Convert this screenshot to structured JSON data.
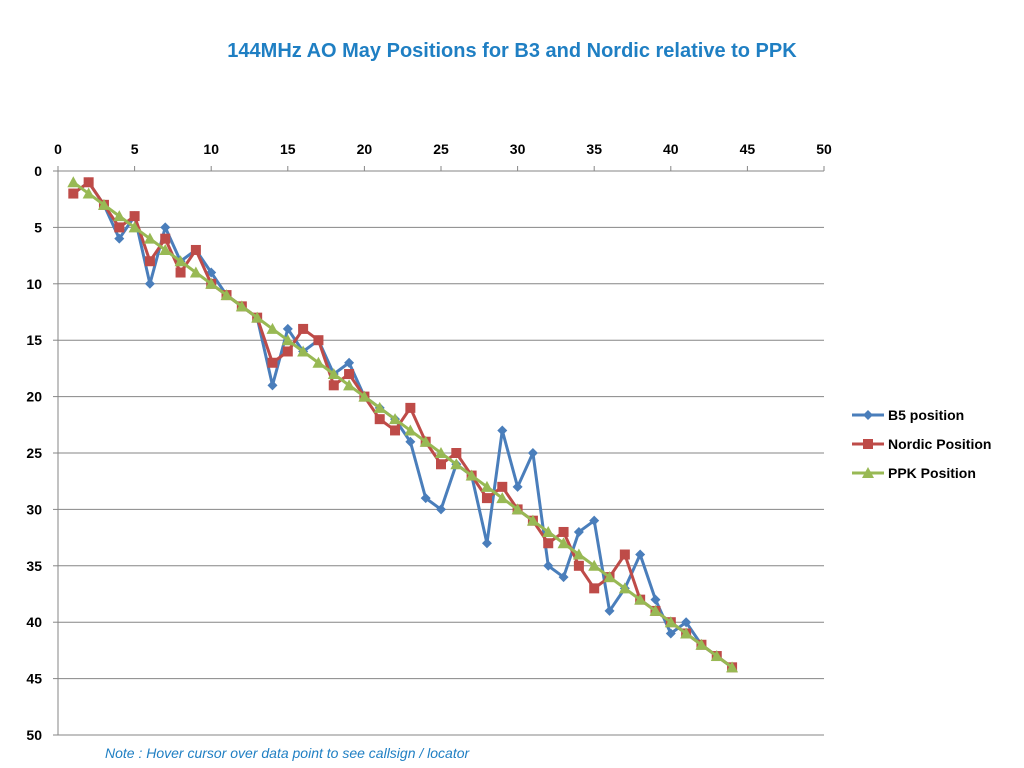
{
  "title": "144MHz AO May Positions for B3 and Nordic relative to PPK",
  "note": "Note : Hover cursor over data point to see callsign / locator",
  "colors": {
    "b5": "#4a7ebb",
    "nordic": "#be4b48",
    "ppk": "#98b954",
    "grid": "#868686"
  },
  "chart_data": {
    "type": "line",
    "title": "144MHz AO May Positions for B3 and Nordic relative to PPK",
    "xlabel": "",
    "ylabel": "",
    "xlim": [
      0,
      50
    ],
    "ylim": [
      0,
      50
    ],
    "y_reversed": true,
    "x_axis_position": "top",
    "xticks": [
      0,
      5,
      10,
      15,
      20,
      25,
      30,
      35,
      40,
      45,
      50
    ],
    "yticks": [
      0,
      5,
      10,
      15,
      20,
      25,
      30,
      35,
      40,
      45,
      50
    ],
    "grid": "horizontal",
    "legend_position": "right",
    "x": [
      1,
      2,
      3,
      4,
      5,
      6,
      7,
      8,
      9,
      10,
      11,
      12,
      13,
      14,
      15,
      16,
      17,
      18,
      19,
      20,
      21,
      22,
      23,
      24,
      25,
      26,
      27,
      28,
      29,
      30,
      31,
      32,
      33,
      34,
      35,
      36,
      37,
      38,
      39,
      40,
      41,
      42,
      43,
      44
    ],
    "series": [
      {
        "name": "B5 position",
        "marker": "diamond",
        "color": "#4a7ebb",
        "values": [
          2,
          1,
          3,
          6,
          4,
          10,
          5,
          8,
          7,
          9,
          11,
          12,
          13,
          19,
          14,
          16,
          15,
          18,
          17,
          20,
          21,
          22,
          24,
          29,
          30,
          26,
          27,
          33,
          23,
          28,
          25,
          35,
          36,
          32,
          31,
          39,
          37,
          34,
          38,
          41,
          40,
          42,
          43,
          44
        ]
      },
      {
        "name": "Nordic Position",
        "marker": "square",
        "color": "#be4b48",
        "values": [
          2,
          1,
          3,
          5,
          4,
          8,
          6,
          9,
          7,
          10,
          11,
          12,
          13,
          17,
          16,
          14,
          15,
          19,
          18,
          20,
          22,
          23,
          21,
          24,
          26,
          25,
          27,
          29,
          28,
          30,
          31,
          33,
          32,
          35,
          37,
          36,
          34,
          38,
          39,
          40,
          41,
          42,
          43,
          44
        ]
      },
      {
        "name": "PPK Position",
        "marker": "triangle",
        "color": "#98b954",
        "values": [
          1,
          2,
          3,
          4,
          5,
          6,
          7,
          8,
          9,
          10,
          11,
          12,
          13,
          14,
          15,
          16,
          17,
          18,
          19,
          20,
          21,
          22,
          23,
          24,
          25,
          26,
          27,
          28,
          29,
          30,
          31,
          32,
          33,
          34,
          35,
          36,
          37,
          38,
          39,
          40,
          41,
          42,
          43,
          44
        ]
      }
    ]
  }
}
